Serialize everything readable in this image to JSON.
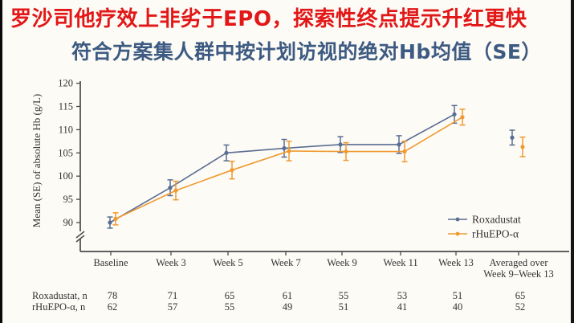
{
  "page": {
    "title_line1": "罗沙司他疗效上非劣于EPO，探索性终点提示升红更快",
    "title_line2": "符合方案集人群中按计划访视的绝对Hb均值（SE）"
  },
  "colors": {
    "title_red": "#e21717",
    "title_blue": "#3d5a82",
    "axis": "#4a4a4a",
    "text": "#333333",
    "roxadustat": "#5a6d92",
    "rhuepo": "#f09a30",
    "background": "#fcfbf6"
  },
  "chart_data": {
    "type": "line",
    "title": "符合方案集人群中按计划访视的绝对Hb均值（SE）",
    "ylabel": "Mean (SE) of absolute Hb (g/L)",
    "xlabel": "",
    "categories": [
      "Baseline",
      "Week 3",
      "Week 5",
      "Week 7",
      "Week 9",
      "Week 11",
      "Week 13",
      "Averaged over\nWeek 9–Week 13"
    ],
    "yticks": [
      90,
      95,
      100,
      105,
      110,
      115,
      120
    ],
    "ylim": [
      90,
      120
    ],
    "axis_break_below_90": true,
    "last_category_detached": true,
    "error_bars": "SE",
    "legend_position": "lower right",
    "grid": false,
    "series": [
      {
        "name": "Roxadustat",
        "color": "#5a6d92",
        "values": [
          90.0,
          97.5,
          105.0,
          106.0,
          106.8,
          106.8,
          113.3,
          108.3
        ],
        "se": [
          1.2,
          1.7,
          1.7,
          1.9,
          1.7,
          1.9,
          1.9,
          1.6
        ]
      },
      {
        "name": "rHuEPO-α",
        "color": "#f09a30",
        "values": [
          90.8,
          96.9,
          101.3,
          105.4,
          105.3,
          105.3,
          112.7,
          106.3
        ],
        "se": [
          1.3,
          2.0,
          1.9,
          2.1,
          1.9,
          2.2,
          1.7,
          2.1
        ]
      }
    ]
  },
  "n_table": {
    "rows": [
      {
        "label": "Roxadustat, n",
        "values": [
          "78",
          "71",
          "65",
          "61",
          "55",
          "53",
          "51",
          "65"
        ]
      },
      {
        "label": "rHuEPO-α, n",
        "values": [
          "62",
          "57",
          "55",
          "49",
          "51",
          "41",
          "40",
          "52"
        ]
      }
    ]
  }
}
